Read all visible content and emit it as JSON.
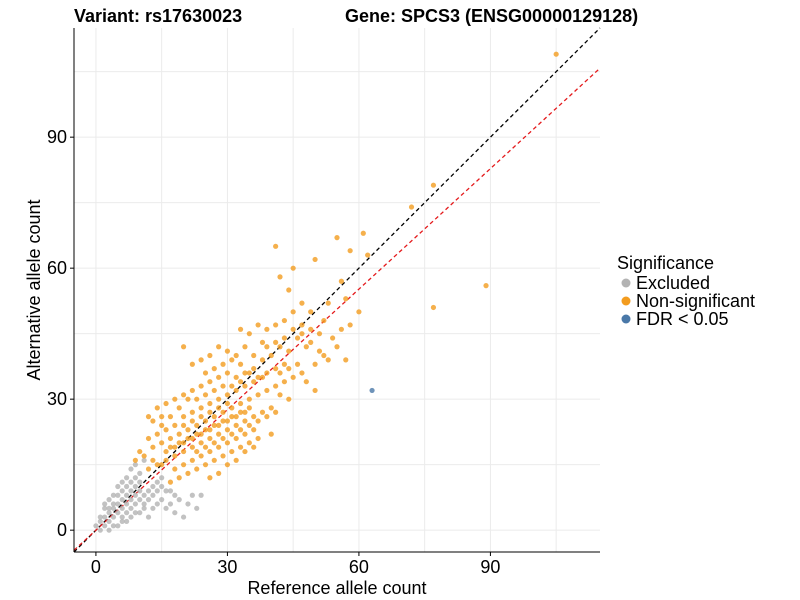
{
  "chart_data": {
    "type": "scatter",
    "title_left": "Variant: rs17630023",
    "title_right": "Gene: SPCS3 (ENSG00000129128)",
    "xlabel": "Reference allele count",
    "ylabel": "Alternative allele count",
    "xlim": [
      -5,
      115
    ],
    "ylim": [
      -5,
      115
    ],
    "x_ticks": [
      0,
      30,
      60,
      90
    ],
    "y_ticks": [
      0,
      30,
      60,
      90
    ],
    "grid": true,
    "legend": {
      "title": "Significance",
      "placement": "right",
      "entries": [
        {
          "label": "Excluded",
          "color": "#b3b3b3"
        },
        {
          "label": "Non-significant",
          "color": "#f39c1f"
        },
        {
          "label": "FDR < 0.05",
          "color": "#4a78a8"
        }
      ]
    },
    "reference_lines": [
      {
        "name": "identity",
        "slope": 1.0,
        "intercept": 0,
        "color": "#000000",
        "dash": true
      },
      {
        "name": "fit",
        "slope": 0.92,
        "intercept": 0,
        "color": "#e41a1c",
        "dash": true
      }
    ],
    "series": [
      {
        "name": "Excluded",
        "color": "#b3b3b3",
        "points": [
          [
            0,
            1
          ],
          [
            1,
            0
          ],
          [
            1,
            2
          ],
          [
            2,
            1
          ],
          [
            2,
            3
          ],
          [
            3,
            2
          ],
          [
            3,
            4
          ],
          [
            4,
            3
          ],
          [
            4,
            5
          ],
          [
            5,
            4
          ],
          [
            5,
            6
          ],
          [
            6,
            5
          ],
          [
            6,
            7
          ],
          [
            7,
            6
          ],
          [
            7,
            8
          ],
          [
            8,
            7
          ],
          [
            8,
            9
          ],
          [
            9,
            8
          ],
          [
            9,
            10
          ],
          [
            10,
            9
          ],
          [
            2,
            5
          ],
          [
            3,
            7
          ],
          [
            4,
            8
          ],
          [
            5,
            10
          ],
          [
            6,
            11
          ],
          [
            7,
            12
          ],
          [
            8,
            14
          ],
          [
            9,
            15
          ],
          [
            10,
            13
          ],
          [
            11,
            16
          ],
          [
            4,
            1
          ],
          [
            6,
            2
          ],
          [
            8,
            3
          ],
          [
            10,
            4
          ],
          [
            11,
            6
          ],
          [
            12,
            7
          ],
          [
            13,
            8
          ],
          [
            14,
            9
          ],
          [
            15,
            10
          ],
          [
            16,
            9
          ],
          [
            3,
            0
          ],
          [
            5,
            1
          ],
          [
            7,
            2
          ],
          [
            9,
            4
          ],
          [
            11,
            5
          ],
          [
            12,
            3
          ],
          [
            13,
            5
          ],
          [
            14,
            6
          ],
          [
            15,
            7
          ],
          [
            16,
            5
          ],
          [
            17,
            6
          ],
          [
            18,
            4
          ],
          [
            18,
            8
          ],
          [
            19,
            7
          ],
          [
            20,
            3
          ],
          [
            21,
            6
          ],
          [
            22,
            8
          ],
          [
            23,
            5
          ],
          [
            24,
            8
          ],
          [
            17,
            9
          ],
          [
            1,
            3
          ],
          [
            2,
            6
          ],
          [
            3,
            5
          ],
          [
            4,
            6
          ],
          [
            5,
            8
          ],
          [
            6,
            9
          ],
          [
            7,
            10
          ],
          [
            8,
            11
          ],
          [
            9,
            12
          ],
          [
            10,
            11
          ],
          [
            6,
            3
          ],
          [
            7,
            4
          ],
          [
            8,
            5
          ],
          [
            9,
            6
          ],
          [
            10,
            7
          ],
          [
            11,
            8
          ],
          [
            12,
            9
          ],
          [
            13,
            10
          ],
          [
            14,
            11
          ],
          [
            15,
            12
          ]
        ]
      },
      {
        "name": "Non-significant",
        "color": "#f39c1f",
        "points": [
          [
            105,
            109
          ],
          [
            77,
            79
          ],
          [
            72,
            74
          ],
          [
            89,
            56
          ],
          [
            77,
            51
          ],
          [
            61,
            68
          ],
          [
            62,
            63
          ],
          [
            58,
            64
          ],
          [
            55,
            67
          ],
          [
            41,
            65
          ],
          [
            45,
            60
          ],
          [
            50,
            62
          ],
          [
            44,
            55
          ],
          [
            42,
            58
          ],
          [
            56,
            57
          ],
          [
            53,
            52
          ],
          [
            57,
            53
          ],
          [
            60,
            50
          ],
          [
            58,
            47
          ],
          [
            56,
            46
          ],
          [
            52,
            48
          ],
          [
            49,
            50
          ],
          [
            47,
            52
          ],
          [
            45,
            50
          ],
          [
            43,
            48
          ],
          [
            41,
            47
          ],
          [
            39,
            46
          ],
          [
            37,
            47
          ],
          [
            35,
            45
          ],
          [
            33,
            46
          ],
          [
            38,
            43
          ],
          [
            36,
            40
          ],
          [
            34,
            42
          ],
          [
            32,
            40
          ],
          [
            30,
            41
          ],
          [
            28,
            42
          ],
          [
            26,
            40
          ],
          [
            24,
            39
          ],
          [
            22,
            38
          ],
          [
            20,
            42
          ],
          [
            46,
            44
          ],
          [
            44,
            41
          ],
          [
            42,
            42
          ],
          [
            40,
            40
          ],
          [
            38,
            39
          ],
          [
            36,
            37
          ],
          [
            34,
            36
          ],
          [
            32,
            35
          ],
          [
            30,
            36
          ],
          [
            28,
            35
          ],
          [
            26,
            34
          ],
          [
            24,
            33
          ],
          [
            22,
            32
          ],
          [
            20,
            31
          ],
          [
            18,
            30
          ],
          [
            16,
            29
          ],
          [
            14,
            28
          ],
          [
            12,
            26
          ],
          [
            13,
            25
          ],
          [
            15,
            24
          ],
          [
            48,
            42
          ],
          [
            50,
            38
          ],
          [
            47,
            36
          ],
          [
            45,
            35
          ],
          [
            43,
            34
          ],
          [
            41,
            33
          ],
          [
            39,
            32
          ],
          [
            37,
            31
          ],
          [
            35,
            30
          ],
          [
            33,
            29
          ],
          [
            31,
            28
          ],
          [
            29,
            27
          ],
          [
            27,
            26
          ],
          [
            25,
            25
          ],
          [
            23,
            24
          ],
          [
            21,
            23
          ],
          [
            19,
            22
          ],
          [
            17,
            21
          ],
          [
            15,
            20
          ],
          [
            13,
            19
          ],
          [
            40,
            28
          ],
          [
            38,
            27
          ],
          [
            36,
            26
          ],
          [
            34,
            25
          ],
          [
            32,
            24
          ],
          [
            30,
            23
          ],
          [
            28,
            22
          ],
          [
            26,
            21
          ],
          [
            24,
            20
          ],
          [
            22,
            19
          ],
          [
            20,
            18
          ],
          [
            18,
            17
          ],
          [
            16,
            16
          ],
          [
            14,
            15
          ],
          [
            12,
            14
          ],
          [
            11,
            17
          ],
          [
            10,
            18
          ],
          [
            9,
            16
          ],
          [
            13,
            16
          ],
          [
            15,
            15
          ],
          [
            44,
            30
          ],
          [
            42,
            31
          ],
          [
            40,
            22
          ],
          [
            37,
            21
          ],
          [
            35,
            20
          ],
          [
            33,
            19
          ],
          [
            31,
            18
          ],
          [
            29,
            17
          ],
          [
            27,
            16
          ],
          [
            25,
            15
          ],
          [
            23,
            14
          ],
          [
            21,
            13
          ],
          [
            19,
            12
          ],
          [
            17,
            11
          ],
          [
            26,
            12
          ],
          [
            28,
            13
          ],
          [
            30,
            15
          ],
          [
            32,
            16
          ],
          [
            34,
            18
          ],
          [
            36,
            19
          ],
          [
            20,
            26
          ],
          [
            22,
            27
          ],
          [
            24,
            28
          ],
          [
            26,
            29
          ],
          [
            28,
            30
          ],
          [
            30,
            31
          ],
          [
            32,
            32
          ],
          [
            34,
            33
          ],
          [
            36,
            34
          ],
          [
            38,
            35
          ],
          [
            21,
            21
          ],
          [
            23,
            22
          ],
          [
            25,
            23
          ],
          [
            27,
            24
          ],
          [
            29,
            25
          ],
          [
            31,
            26
          ],
          [
            33,
            27
          ],
          [
            35,
            28
          ],
          [
            19,
            20
          ],
          [
            17,
            19
          ],
          [
            18,
            24
          ],
          [
            16,
            23
          ],
          [
            14,
            22
          ],
          [
            12,
            21
          ],
          [
            20,
            24
          ],
          [
            22,
            25
          ],
          [
            24,
            26
          ],
          [
            26,
            27
          ],
          [
            28,
            28
          ],
          [
            30,
            29
          ],
          [
            46,
            38
          ],
          [
            48,
            34
          ],
          [
            50,
            32
          ],
          [
            52,
            40
          ],
          [
            54,
            44
          ],
          [
            55,
            42
          ],
          [
            57,
            39
          ],
          [
            51,
            45
          ],
          [
            49,
            46
          ],
          [
            47,
            47
          ],
          [
            25,
            36
          ],
          [
            27,
            37
          ],
          [
            29,
            38
          ],
          [
            31,
            39
          ],
          [
            33,
            38
          ],
          [
            35,
            36
          ],
          [
            37,
            35
          ],
          [
            39,
            36
          ],
          [
            41,
            37
          ],
          [
            43,
            38
          ],
          [
            21,
            30
          ],
          [
            19,
            28
          ],
          [
            17,
            26
          ],
          [
            15,
            26
          ],
          [
            23,
            30
          ],
          [
            25,
            31
          ],
          [
            27,
            32
          ],
          [
            29,
            33
          ],
          [
            31,
            33
          ],
          [
            33,
            34
          ],
          [
            18,
            14
          ],
          [
            20,
            15
          ],
          [
            22,
            16
          ],
          [
            24,
            17
          ],
          [
            26,
            18
          ],
          [
            28,
            19
          ],
          [
            30,
            20
          ],
          [
            32,
            21
          ],
          [
            34,
            22
          ],
          [
            36,
            23
          ],
          [
            16,
            18
          ],
          [
            18,
            19
          ],
          [
            20,
            20
          ],
          [
            22,
            21
          ],
          [
            24,
            22
          ],
          [
            26,
            23
          ],
          [
            28,
            24
          ],
          [
            30,
            25
          ],
          [
            32,
            26
          ],
          [
            34,
            27
          ],
          [
            39,
            42
          ],
          [
            41,
            43
          ],
          [
            43,
            44
          ],
          [
            45,
            46
          ],
          [
            47,
            45
          ],
          [
            49,
            43
          ],
          [
            51,
            41
          ],
          [
            53,
            39
          ],
          [
            42,
            36
          ],
          [
            44,
            37
          ],
          [
            23,
            18
          ],
          [
            25,
            19
          ],
          [
            27,
            20
          ],
          [
            29,
            21
          ],
          [
            31,
            22
          ],
          [
            33,
            23
          ],
          [
            35,
            24
          ],
          [
            37,
            25
          ],
          [
            39,
            26
          ],
          [
            41,
            27
          ]
        ]
      },
      {
        "name": "FDR < 0.05",
        "color": "#4a78a8",
        "points": [
          [
            63,
            32
          ]
        ]
      }
    ]
  }
}
